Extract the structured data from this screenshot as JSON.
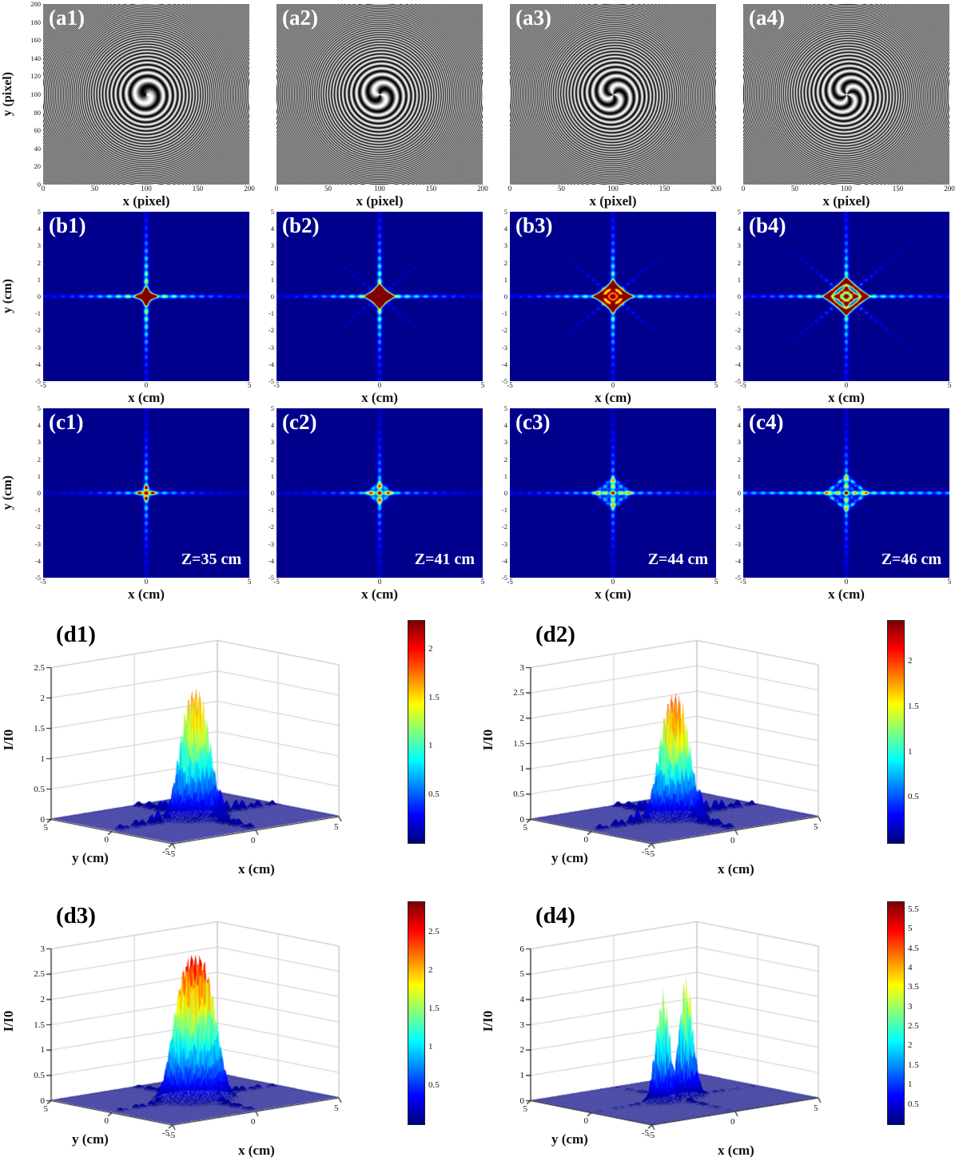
{
  "chart_data": {
    "type": "heatmap",
    "figure_kind": "multi-panel optics figure",
    "colors": {
      "background": "#ffffff",
      "jet_min": "#000080",
      "jet_max": "#800000",
      "grid": "#cccccc"
    },
    "rows": {
      "a": {
        "type": "heatmap",
        "colormap": "gray",
        "xlabel": "x (pixel)",
        "ylabel": "y (pixel)",
        "xlim": [
          0,
          200
        ],
        "ylim": [
          0,
          200
        ],
        "xticks": [
          0,
          50,
          100,
          150,
          200
        ],
        "yticks": [
          0,
          20,
          40,
          60,
          80,
          100,
          120,
          140,
          160,
          180,
          200
        ],
        "panels": [
          {
            "label": "(a1)",
            "topological_charge": 1
          },
          {
            "label": "(a2)",
            "topological_charge": 2
          },
          {
            "label": "(a3)",
            "topological_charge": 3
          },
          {
            "label": "(a4)",
            "topological_charge": 4
          }
        ]
      },
      "b": {
        "type": "heatmap",
        "colormap": "jet",
        "xlabel": "x (cm)",
        "ylabel": "y (cm)",
        "xlim": [
          -5,
          5
        ],
        "ylim": [
          -5,
          5
        ],
        "xticks": [
          -5,
          0,
          5
        ],
        "yticks": [
          -5,
          -4,
          -3,
          -2,
          -1,
          0,
          1,
          2,
          3,
          4,
          5
        ],
        "panels": [
          {
            "label": "(b1)",
            "ring_radius_cm": 0.3
          },
          {
            "label": "(b2)",
            "ring_radius_cm": 0.55
          },
          {
            "label": "(b3)",
            "ring_radius_cm": 0.75
          },
          {
            "label": "(b4)",
            "ring_radius_cm": 0.95
          }
        ]
      },
      "c": {
        "type": "heatmap",
        "colormap": "jet",
        "xlabel": "x (cm)",
        "ylabel": "y (cm)",
        "xlim": [
          -5,
          5
        ],
        "ylim": [
          -5,
          5
        ],
        "xticks": [
          -5,
          0,
          5
        ],
        "yticks": [
          -5,
          -4,
          -3,
          -2,
          -1,
          0,
          1,
          2,
          3,
          4,
          5
        ],
        "panels": [
          {
            "label": "(c1)",
            "z_label": "Z=35 cm",
            "ring_radius_cm": 0.3
          },
          {
            "label": "(c2)",
            "z_label": "Z=41 cm",
            "ring_radius_cm": 0.55
          },
          {
            "label": "(c3)",
            "z_label": "Z=44 cm",
            "ring_radius_cm": 0.8
          },
          {
            "label": "(c4)",
            "z_label": "Z=46 cm",
            "ring_radius_cm": 0.95
          }
        ]
      },
      "d": {
        "type": "area",
        "plot": "surface3d",
        "colormap": "jet",
        "xlabel": "x (cm)",
        "ylabel": "y (cm)",
        "zlabel": "I/I0",
        "xlim": [
          -5,
          5
        ],
        "ylim": [
          -5,
          5
        ],
        "xticks": [
          -5,
          0,
          5
        ],
        "yticks": [
          5,
          0,
          -5
        ],
        "panels": [
          {
            "label": "(d1)",
            "zlim": [
              0,
              2.5
            ],
            "zticks": [
              0,
              0.5,
              1,
              1.5,
              2,
              2.5
            ],
            "peak_I_I0": 2.2,
            "profile": "single",
            "colorbar_ticks": [
              0.5,
              1,
              1.5,
              2
            ],
            "colorbar_max": 2.3
          },
          {
            "label": "(d2)",
            "zlim": [
              0,
              3
            ],
            "zticks": [
              0,
              0.5,
              1,
              1.5,
              2,
              2.5,
              3
            ],
            "peak_I_I0": 2.55,
            "profile": "single",
            "colorbar_ticks": [
              0.5,
              1,
              1.5,
              2
            ],
            "colorbar_max": 2.45
          },
          {
            "label": "(d3)",
            "zlim": [
              0,
              3
            ],
            "zticks": [
              0,
              0.5,
              1,
              1.5,
              2,
              2.5,
              3
            ],
            "peak_I_I0": 2.9,
            "profile": "broad",
            "colorbar_ticks": [
              0.5,
              1,
              1.5,
              2,
              2.5
            ],
            "colorbar_max": 2.9
          },
          {
            "label": "(d4)",
            "zlim": [
              0,
              6
            ],
            "zticks": [
              0,
              1,
              2,
              3,
              4,
              5,
              6
            ],
            "peak_I_I0": 5.2,
            "profile": "double",
            "colorbar_ticks": [
              0.5,
              1,
              1.5,
              2,
              2.5,
              3,
              3.5,
              4,
              4.5,
              5,
              5.5
            ],
            "colorbar_max": 5.7
          }
        ]
      }
    }
  }
}
